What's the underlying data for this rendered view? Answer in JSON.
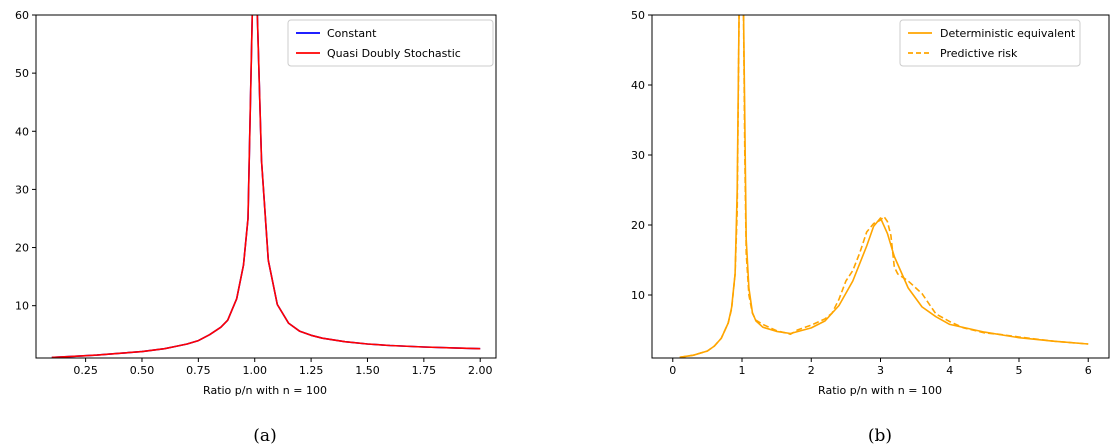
{
  "chart_data": [
    {
      "type": "line",
      "caption": "(a)",
      "xlabel": "Ratio p/n with n = 100",
      "ylabel": "",
      "xlim": [
        0.03,
        2.07
      ],
      "ylim": [
        1,
        60
      ],
      "xticks": [
        0.25,
        0.5,
        0.75,
        1.0,
        1.25,
        1.5,
        1.75,
        2.0
      ],
      "xtick_labels": [
        "0.25",
        "0.50",
        "0.75",
        "1.00",
        "1.25",
        "1.50",
        "1.75",
        "2.00"
      ],
      "yticks": [
        10,
        20,
        30,
        40,
        50,
        60
      ],
      "ytick_labels": [
        "10",
        "20",
        "30",
        "40",
        "50",
        "60"
      ],
      "grid": false,
      "legend_position": "top-right",
      "series": [
        {
          "name": "Constant",
          "color": "#0000ff",
          "dash": "solid",
          "x": [
            0.1,
            0.2,
            0.3,
            0.4,
            0.5,
            0.6,
            0.65,
            0.7,
            0.75,
            0.8,
            0.85,
            0.88,
            0.92,
            0.95,
            0.97,
            0.99,
            1.01,
            1.03,
            1.06,
            1.1,
            1.15,
            1.2,
            1.25,
            1.3,
            1.4,
            1.5,
            1.6,
            1.75,
            1.9,
            2.0
          ],
          "y": [
            1.1,
            1.3,
            1.5,
            1.8,
            2.1,
            2.6,
            3.0,
            3.4,
            4.0,
            5.0,
            6.3,
            7.5,
            11.2,
            17,
            25,
            62,
            62,
            35,
            17.8,
            10.2,
            7.0,
            5.6,
            4.9,
            4.4,
            3.8,
            3.4,
            3.15,
            2.9,
            2.7,
            2.6
          ]
        },
        {
          "name": "Quasi Doubly Stochastic",
          "color": "#ff0000",
          "dash": "solid",
          "x": [
            0.1,
            0.2,
            0.3,
            0.4,
            0.5,
            0.6,
            0.65,
            0.7,
            0.75,
            0.8,
            0.85,
            0.88,
            0.92,
            0.95,
            0.97,
            0.99,
            1.01,
            1.03,
            1.06,
            1.1,
            1.15,
            1.2,
            1.25,
            1.3,
            1.4,
            1.5,
            1.6,
            1.75,
            1.9,
            2.0
          ],
          "y": [
            1.1,
            1.3,
            1.5,
            1.8,
            2.1,
            2.6,
            3.0,
            3.4,
            4.0,
            5.0,
            6.3,
            7.5,
            11.2,
            17,
            25,
            62,
            62,
            35,
            17.8,
            10.2,
            7.0,
            5.6,
            4.9,
            4.4,
            3.8,
            3.4,
            3.15,
            2.9,
            2.7,
            2.6
          ]
        }
      ]
    },
    {
      "type": "line",
      "caption": "(b)",
      "xlabel": "Ratio p/n with n = 100",
      "ylabel": "",
      "xlim": [
        -0.3,
        6.3
      ],
      "ylim": [
        1,
        50
      ],
      "xticks": [
        0,
        1,
        2,
        3,
        4,
        5,
        6
      ],
      "xtick_labels": [
        "0",
        "1",
        "2",
        "3",
        "4",
        "5",
        "6"
      ],
      "yticks": [
        10,
        20,
        30,
        40,
        50
      ],
      "ytick_labels": [
        "10",
        "20",
        "30",
        "40",
        "50"
      ],
      "grid": false,
      "legend_position": "top-right",
      "series": [
        {
          "name": "Deterministic equivalent",
          "color": "#ffa500",
          "dash": "solid",
          "x": [
            0.1,
            0.3,
            0.5,
            0.6,
            0.7,
            0.8,
            0.85,
            0.9,
            0.93,
            0.96,
            0.98,
            1.0,
            1.02,
            1.04,
            1.06,
            1.1,
            1.15,
            1.2,
            1.3,
            1.5,
            1.7,
            2.0,
            2.2,
            2.4,
            2.6,
            2.8,
            2.9,
            3.0,
            3.1,
            3.2,
            3.4,
            3.6,
            3.8,
            4.0,
            4.5,
            5.0,
            5.5,
            6.0
          ],
          "y": [
            1.1,
            1.4,
            2.0,
            2.7,
            3.8,
            6.0,
            8.2,
            13,
            25,
            52,
            52,
            52,
            52,
            35,
            18,
            11,
            7.5,
            6.3,
            5.4,
            4.8,
            4.5,
            5.3,
            6.3,
            8.5,
            12,
            17,
            19.8,
            21,
            18.8,
            15.5,
            11,
            8.3,
            6.9,
            5.8,
            4.7,
            3.9,
            3.4,
            3.0
          ]
        },
        {
          "name": "Predictive risk",
          "color": "#ffa500",
          "dash": "dashed",
          "x": [
            0.1,
            0.3,
            0.5,
            0.6,
            0.7,
            0.8,
            0.85,
            0.9,
            0.93,
            0.96,
            0.98,
            1.0,
            1.02,
            1.04,
            1.06,
            1.1,
            1.15,
            1.2,
            1.3,
            1.5,
            1.7,
            1.8,
            2.0,
            2.2,
            2.3,
            2.4,
            2.5,
            2.6,
            2.7,
            2.8,
            2.9,
            3.0,
            3.05,
            3.1,
            3.15,
            3.2,
            3.25,
            3.4,
            3.6,
            3.8,
            4.0,
            4.2,
            4.5,
            4.7,
            5.0,
            5.5,
            6.0
          ],
          "y": [
            1.1,
            1.4,
            2.0,
            2.7,
            3.8,
            6.0,
            8.0,
            13,
            22,
            52,
            52,
            52,
            52,
            30,
            16,
            10,
            7.4,
            6.4,
            5.8,
            4.9,
            4.4,
            5.0,
            5.7,
            6.6,
            7.4,
            9.4,
            12.0,
            13.5,
            16.0,
            19.0,
            20.2,
            20.7,
            21.2,
            20.5,
            18.5,
            14.0,
            13.0,
            12.0,
            10.2,
            7.3,
            6.2,
            5.3,
            4.6,
            4.4,
            4.0,
            3.4,
            3.0
          ]
        }
      ]
    }
  ]
}
